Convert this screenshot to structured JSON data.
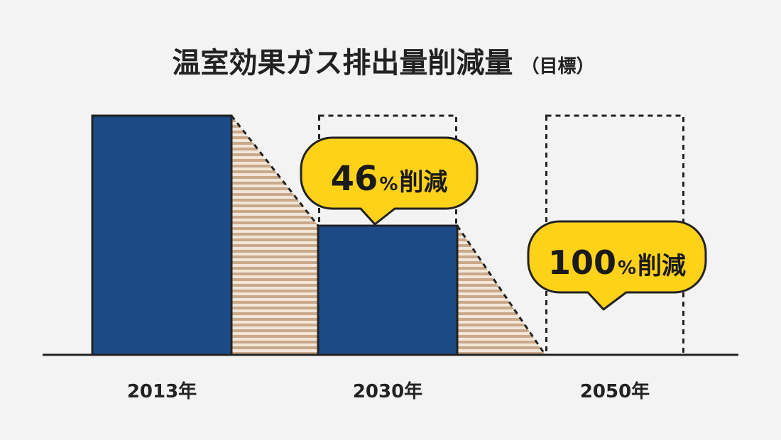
{
  "colors": {
    "background": "#f3f3f3",
    "bar": "#1b4a86",
    "outline": "#222222",
    "stripe_light": "#f2e6d8",
    "stripe_dark": "#c9a98a",
    "bubble": "#ffd21a"
  },
  "chart_data": {
    "type": "bar",
    "title": "温室効果ガス排出量削減量",
    "subtitle": "（目標）",
    "categories": [
      "2013年",
      "2030年",
      "2050年"
    ],
    "values": [
      100,
      54,
      0
    ],
    "ylim": [
      0,
      100
    ],
    "grid": false,
    "target_outline": [
      false,
      true,
      true
    ],
    "annotations": [
      {
        "category": "2030年",
        "number": "46",
        "percent": "%",
        "text": "削減"
      },
      {
        "category": "2050年",
        "number": "100",
        "percent": "%",
        "text": "削減"
      }
    ]
  }
}
